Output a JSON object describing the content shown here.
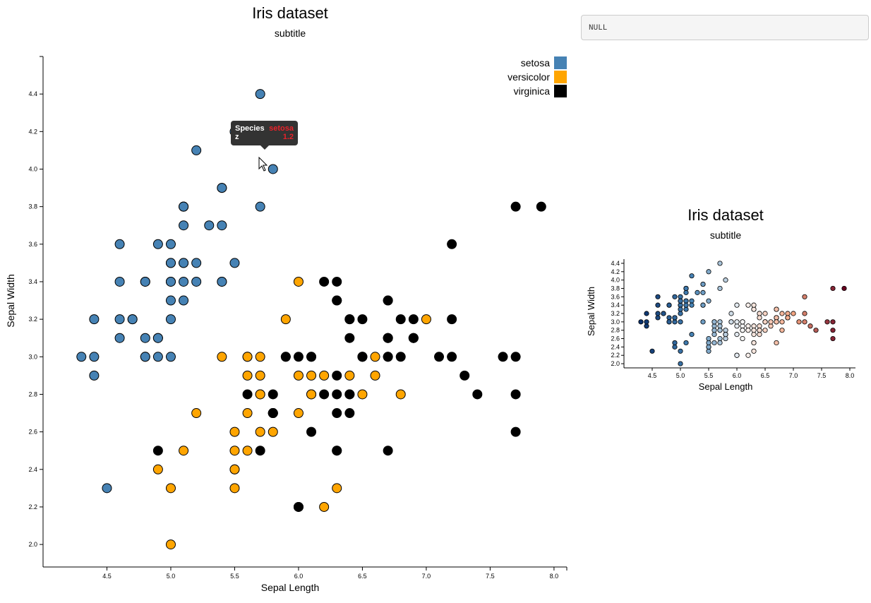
{
  "output_box": {
    "text": "NULL"
  },
  "tooltip": {
    "label1": "Species",
    "value1": "setosa",
    "label2": "z",
    "value2": "1.2"
  },
  "colors": {
    "setosa": "#4682b4",
    "versicolor": "#ffa500",
    "virginica": "#000000"
  },
  "chart_data": [
    {
      "type": "scatter",
      "title": "Iris dataset",
      "subtitle": "subtitle",
      "xlabel": "Sepal Length",
      "ylabel": "Sepal Width",
      "xlim": [
        4.0,
        8.1
      ],
      "ylim": [
        1.88,
        4.6
      ],
      "xticks": [
        "4.5",
        "5.0",
        "5.5",
        "6.0",
        "6.5",
        "7.0",
        "7.5",
        "8.0"
      ],
      "yticks": [
        "2.0",
        "2.2",
        "2.4",
        "2.6",
        "2.8",
        "3.0",
        "3.2",
        "3.4",
        "3.6",
        "3.8",
        "4.0",
        "4.2",
        "4.4"
      ],
      "legend_position": "top-right",
      "series": [
        {
          "name": "setosa",
          "color": "#4682b4",
          "points": [
            [
              5.1,
              3.5
            ],
            [
              4.9,
              3.0
            ],
            [
              4.7,
              3.2
            ],
            [
              4.6,
              3.1
            ],
            [
              5.0,
              3.6
            ],
            [
              5.4,
              3.9
            ],
            [
              4.6,
              3.4
            ],
            [
              5.0,
              3.4
            ],
            [
              4.4,
              2.9
            ],
            [
              4.9,
              3.1
            ],
            [
              5.4,
              3.7
            ],
            [
              4.8,
              3.4
            ],
            [
              4.8,
              3.0
            ],
            [
              4.3,
              3.0
            ],
            [
              5.8,
              4.0
            ],
            [
              5.7,
              4.4
            ],
            [
              5.4,
              3.9
            ],
            [
              5.1,
              3.5
            ],
            [
              5.7,
              3.8
            ],
            [
              5.1,
              3.8
            ],
            [
              5.4,
              3.4
            ],
            [
              5.1,
              3.7
            ],
            [
              4.6,
              3.6
            ],
            [
              5.1,
              3.3
            ],
            [
              4.8,
              3.4
            ],
            [
              5.0,
              3.0
            ],
            [
              5.0,
              3.4
            ],
            [
              5.2,
              3.5
            ],
            [
              5.2,
              3.4
            ],
            [
              4.7,
              3.2
            ],
            [
              4.8,
              3.1
            ],
            [
              5.4,
              3.4
            ],
            [
              5.2,
              4.1
            ],
            [
              5.5,
              4.2
            ],
            [
              4.9,
              3.1
            ],
            [
              5.0,
              3.2
            ],
            [
              5.5,
              3.5
            ],
            [
              4.9,
              3.6
            ],
            [
              4.4,
              3.0
            ],
            [
              5.1,
              3.4
            ],
            [
              5.0,
              3.5
            ],
            [
              4.5,
              2.3
            ],
            [
              4.4,
              3.2
            ],
            [
              5.0,
              3.5
            ],
            [
              5.1,
              3.8
            ],
            [
              4.8,
              3.0
            ],
            [
              5.1,
              3.8
            ],
            [
              4.6,
              3.2
            ],
            [
              5.3,
              3.7
            ],
            [
              5.0,
              3.3
            ]
          ]
        },
        {
          "name": "versicolor",
          "color": "#ffa500",
          "points": [
            [
              7.0,
              3.2
            ],
            [
              6.4,
              3.2
            ],
            [
              6.9,
              3.1
            ],
            [
              5.5,
              2.3
            ],
            [
              6.5,
              2.8
            ],
            [
              5.7,
              2.8
            ],
            [
              6.3,
              3.3
            ],
            [
              4.9,
              2.4
            ],
            [
              6.6,
              2.9
            ],
            [
              5.2,
              2.7
            ],
            [
              5.0,
              2.0
            ],
            [
              5.9,
              3.0
            ],
            [
              6.0,
              2.2
            ],
            [
              6.1,
              2.9
            ],
            [
              5.6,
              2.9
            ],
            [
              6.7,
              3.1
            ],
            [
              5.6,
              3.0
            ],
            [
              5.8,
              2.7
            ],
            [
              6.2,
              2.2
            ],
            [
              5.6,
              2.5
            ],
            [
              5.9,
              3.2
            ],
            [
              6.1,
              2.8
            ],
            [
              6.3,
              2.5
            ],
            [
              6.1,
              2.8
            ],
            [
              6.4,
              2.9
            ],
            [
              6.6,
              3.0
            ],
            [
              6.8,
              2.8
            ],
            [
              6.7,
              3.0
            ],
            [
              6.0,
              2.9
            ],
            [
              5.7,
              2.6
            ],
            [
              5.5,
              2.4
            ],
            [
              5.5,
              2.4
            ],
            [
              5.8,
              2.7
            ],
            [
              6.0,
              2.7
            ],
            [
              5.4,
              3.0
            ],
            [
              6.0,
              3.4
            ],
            [
              6.7,
              3.1
            ],
            [
              6.3,
              2.3
            ],
            [
              5.6,
              3.0
            ],
            [
              5.5,
              2.5
            ],
            [
              5.5,
              2.6
            ],
            [
              6.1,
              3.0
            ],
            [
              5.8,
              2.6
            ],
            [
              5.0,
              2.3
            ],
            [
              5.6,
              2.7
            ],
            [
              5.7,
              3.0
            ],
            [
              5.7,
              2.9
            ],
            [
              6.2,
              2.9
            ],
            [
              5.1,
              2.5
            ],
            [
              5.7,
              2.8
            ]
          ]
        },
        {
          "name": "virginica",
          "color": "#000000",
          "points": [
            [
              6.3,
              3.3
            ],
            [
              5.8,
              2.7
            ],
            [
              7.1,
              3.0
            ],
            [
              6.3,
              2.9
            ],
            [
              6.5,
              3.0
            ],
            [
              7.6,
              3.0
            ],
            [
              4.9,
              2.5
            ],
            [
              7.3,
              2.9
            ],
            [
              6.7,
              2.5
            ],
            [
              7.2,
              3.6
            ],
            [
              6.5,
              3.2
            ],
            [
              6.4,
              2.7
            ],
            [
              6.8,
              3.0
            ],
            [
              5.7,
              2.5
            ],
            [
              5.8,
              2.8
            ],
            [
              6.4,
              3.2
            ],
            [
              6.5,
              3.0
            ],
            [
              7.7,
              3.8
            ],
            [
              7.7,
              2.6
            ],
            [
              6.0,
              2.2
            ],
            [
              6.9,
              3.2
            ],
            [
              5.6,
              2.8
            ],
            [
              7.7,
              2.8
            ],
            [
              6.3,
              2.7
            ],
            [
              6.7,
              3.3
            ],
            [
              7.2,
              3.2
            ],
            [
              6.2,
              2.8
            ],
            [
              6.1,
              3.0
            ],
            [
              6.4,
              2.8
            ],
            [
              7.2,
              3.0
            ],
            [
              7.4,
              2.8
            ],
            [
              7.9,
              3.8
            ],
            [
              6.4,
              2.8
            ],
            [
              6.3,
              2.8
            ],
            [
              6.1,
              2.6
            ],
            [
              7.7,
              3.0
            ],
            [
              6.3,
              3.4
            ],
            [
              6.4,
              3.1
            ],
            [
              6.0,
              3.0
            ],
            [
              6.9,
              3.1
            ],
            [
              6.7,
              3.1
            ],
            [
              6.9,
              3.1
            ],
            [
              5.8,
              2.7
            ],
            [
              6.8,
              3.2
            ],
            [
              6.7,
              3.3
            ],
            [
              6.7,
              3.0
            ],
            [
              6.3,
              2.5
            ],
            [
              6.5,
              3.0
            ],
            [
              6.2,
              3.4
            ],
            [
              5.9,
              3.0
            ]
          ]
        }
      ]
    },
    {
      "type": "scatter",
      "title": "Iris dataset",
      "subtitle": "subtitle",
      "xlabel": "Sepal Length",
      "ylabel": "Sepal Width",
      "xlim": [
        4.0,
        8.1
      ],
      "ylim": [
        1.9,
        4.5
      ],
      "xticks": [
        "4.5",
        "5.0",
        "5.5",
        "6.0",
        "6.5",
        "7.0",
        "7.5",
        "8.0"
      ],
      "yticks": [
        "2.0",
        "2.2",
        "2.4",
        "2.6",
        "2.8",
        "3.0",
        "3.2",
        "3.4",
        "3.6",
        "3.8",
        "4.0",
        "4.2",
        "4.4"
      ],
      "color_scale": [
        "#08306b",
        "#4682b4",
        "#f7f7f7",
        "#f4a582",
        "#67001f"
      ],
      "note": "points share the Iris dataset values of the main chart, colored by a diverging scale"
    }
  ]
}
